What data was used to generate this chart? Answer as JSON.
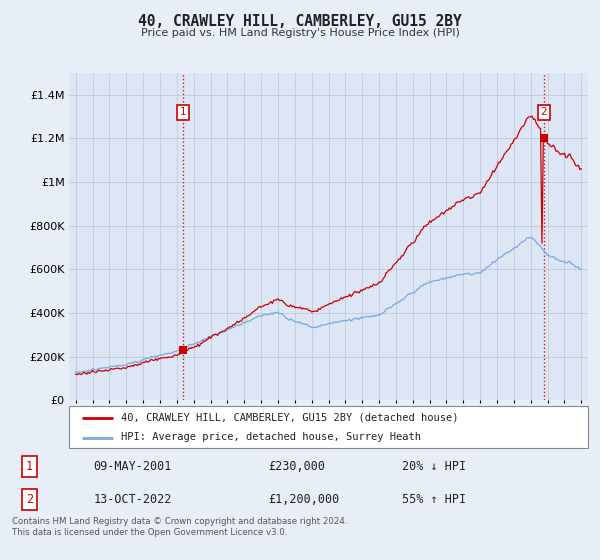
{
  "title": "40, CRAWLEY HILL, CAMBERLEY, GU15 2BY",
  "subtitle": "Price paid vs. HM Land Registry's House Price Index (HPI)",
  "ylabel_ticks": [
    "£0",
    "£200K",
    "£400K",
    "£600K",
    "£800K",
    "£1M",
    "£1.2M",
    "£1.4M"
  ],
  "ytick_values": [
    0,
    200000,
    400000,
    600000,
    800000,
    1000000,
    1200000,
    1400000
  ],
  "ylim": [
    0,
    1500000
  ],
  "x_start_year": 1995,
  "x_end_year": 2025,
  "sale1_date": "09-MAY-2001",
  "sale1_price": 230000,
  "sale1_label": "1",
  "sale1_hpi_rel": "20% ↓ HPI",
  "sale2_date": "13-OCT-2022",
  "sale2_price": 1200000,
  "sale2_label": "2",
  "sale2_hpi_rel": "55% ↑ HPI",
  "sale1_year": 2001.36,
  "sale2_year": 2022.79,
  "line_color_property": "#cc0000",
  "line_color_hpi": "#7aaadd",
  "marker_color": "#cc0000",
  "dashed_line_color": "#cc0000",
  "legend_label_property": "40, CRAWLEY HILL, CAMBERLEY, GU15 2BY (detached house)",
  "legend_label_hpi": "HPI: Average price, detached house, Surrey Heath",
  "footer_text": "Contains HM Land Registry data © Crown copyright and database right 2024.\nThis data is licensed under the Open Government Licence v3.0.",
  "bg_color": "#e8eef8",
  "plot_bg_color": "#dce6f5",
  "grid_color": "#b0bcd0",
  "label_box_color": "#cc0000"
}
